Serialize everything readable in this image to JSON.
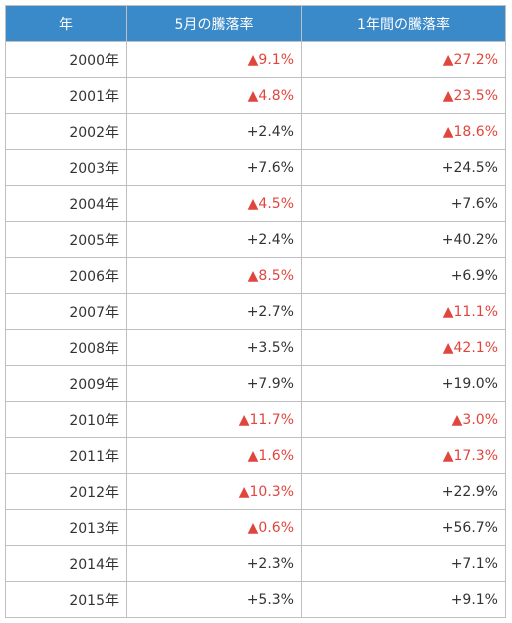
{
  "table": {
    "headers": [
      "年",
      "5月の騰落率",
      "1年間の騰落率"
    ],
    "rows": [
      {
        "year": "2000年",
        "may": "▲9.1%",
        "may_neg": true,
        "annual": "▲27.2%",
        "annual_neg": true
      },
      {
        "year": "2001年",
        "may": "▲4.8%",
        "may_neg": true,
        "annual": "▲23.5%",
        "annual_neg": true
      },
      {
        "year": "2002年",
        "may": "+2.4%",
        "may_neg": false,
        "annual": "▲18.6%",
        "annual_neg": true
      },
      {
        "year": "2003年",
        "may": "+7.6%",
        "may_neg": false,
        "annual": "+24.5%",
        "annual_neg": false
      },
      {
        "year": "2004年",
        "may": "▲4.5%",
        "may_neg": true,
        "annual": "+7.6%",
        "annual_neg": false
      },
      {
        "year": "2005年",
        "may": "+2.4%",
        "may_neg": false,
        "annual": "+40.2%",
        "annual_neg": false
      },
      {
        "year": "2006年",
        "may": "▲8.5%",
        "may_neg": true,
        "annual": "+6.9%",
        "annual_neg": false
      },
      {
        "year": "2007年",
        "may": "+2.7%",
        "may_neg": false,
        "annual": "▲11.1%",
        "annual_neg": true
      },
      {
        "year": "2008年",
        "may": "+3.5%",
        "may_neg": false,
        "annual": "▲42.1%",
        "annual_neg": true
      },
      {
        "year": "2009年",
        "may": "+7.9%",
        "may_neg": false,
        "annual": "+19.0%",
        "annual_neg": false
      },
      {
        "year": "2010年",
        "may": "▲11.7%",
        "may_neg": true,
        "annual": "▲3.0%",
        "annual_neg": true
      },
      {
        "year": "2011年",
        "may": "▲1.6%",
        "may_neg": true,
        "annual": "▲17.3%",
        "annual_neg": true
      },
      {
        "year": "2012年",
        "may": "▲10.3%",
        "may_neg": true,
        "annual": "+22.9%",
        "annual_neg": false
      },
      {
        "year": "2013年",
        "may": "▲0.6%",
        "may_neg": true,
        "annual": "+56.7%",
        "annual_neg": false
      },
      {
        "year": "2014年",
        "may": "+2.3%",
        "may_neg": false,
        "annual": "+7.1%",
        "annual_neg": false
      },
      {
        "year": "2015年",
        "may": "+5.3%",
        "may_neg": false,
        "annual": "+9.1%",
        "annual_neg": false
      }
    ]
  },
  "colors": {
    "header_bg": "#3a89c9",
    "header_text": "#ffffff",
    "negative": "#e0463e",
    "positive": "#333333",
    "border": "#bfbfbf"
  }
}
